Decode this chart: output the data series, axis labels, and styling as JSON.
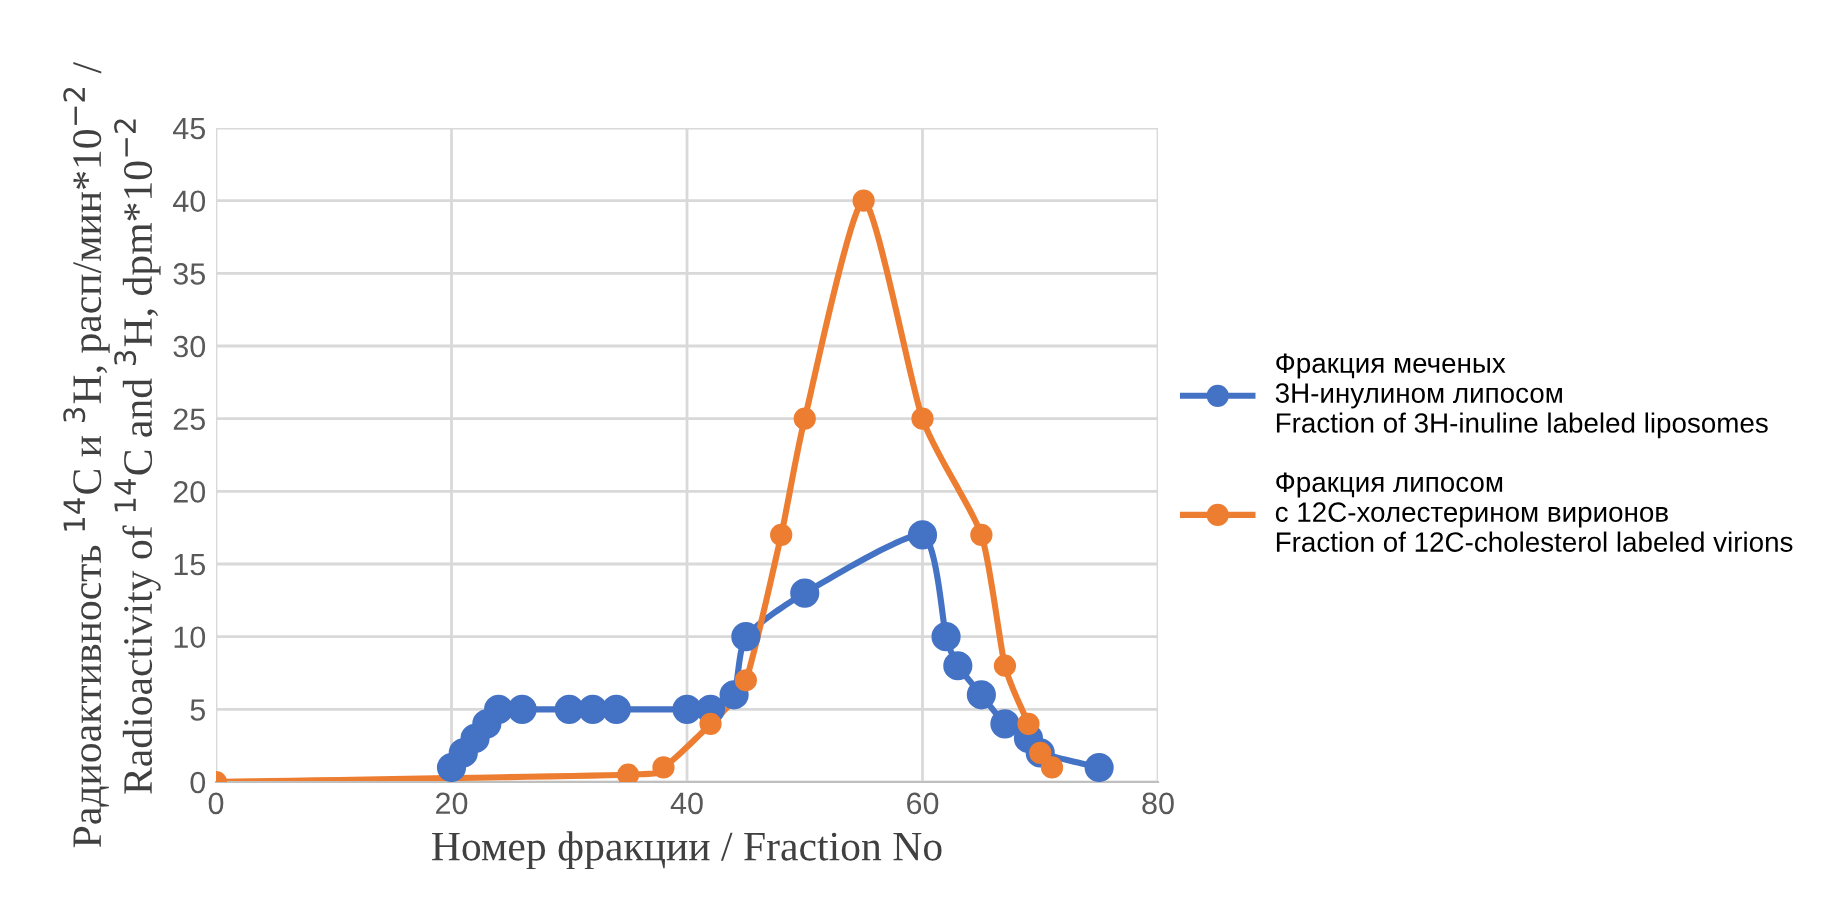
{
  "chart_data": {
    "type": "line",
    "xlabel": "Номер фракции / Fraction No",
    "ylabel": "Радиоактивность $^{14}$C и $^{3}$H, расп/мин*10$^{−2}$ /\nRadioactivity of $^{14}$C and $^{3}$H, dpm*10$^{−2}$",
    "xlim": [
      0,
      80
    ],
    "xticks": [
      0,
      20,
      40,
      60,
      80
    ],
    "ylim": [
      0,
      45
    ],
    "yticks": [
      0,
      5,
      10,
      15,
      20,
      25,
      30,
      35,
      40,
      45
    ],
    "grid": true,
    "legend": "right",
    "marker": "circle",
    "line_style": "solid",
    "series": [
      {
        "name": "Фракция меченых\n3Н-инулином липосом\nFraction of 3H-inuline labeled liposomes",
        "color": "#4472c4",
        "x": [
          20,
          21,
          22,
          23,
          24,
          26,
          30,
          32,
          34,
          40,
          42,
          44,
          45,
          50,
          60,
          62,
          63,
          65,
          67,
          69,
          70,
          75
        ],
        "values": [
          1,
          2,
          3,
          4,
          5,
          5,
          5,
          5,
          5,
          5,
          5,
          6,
          10,
          13,
          17,
          10,
          8,
          6,
          4,
          3,
          2,
          1
        ]
      },
      {
        "name": "Фракция липосом\nс 12С-холестерином вирионов\nFraction of 12C-cholesterol labeled virions",
        "color": "#ed7d31",
        "x": [
          0,
          35,
          38,
          42,
          45,
          48,
          50,
          55,
          60,
          65,
          67,
          69,
          70,
          71
        ],
        "values": [
          0,
          0.5,
          1,
          4,
          7,
          17,
          25,
          40,
          25,
          17,
          8,
          4,
          2,
          1
        ]
      }
    ]
  }
}
